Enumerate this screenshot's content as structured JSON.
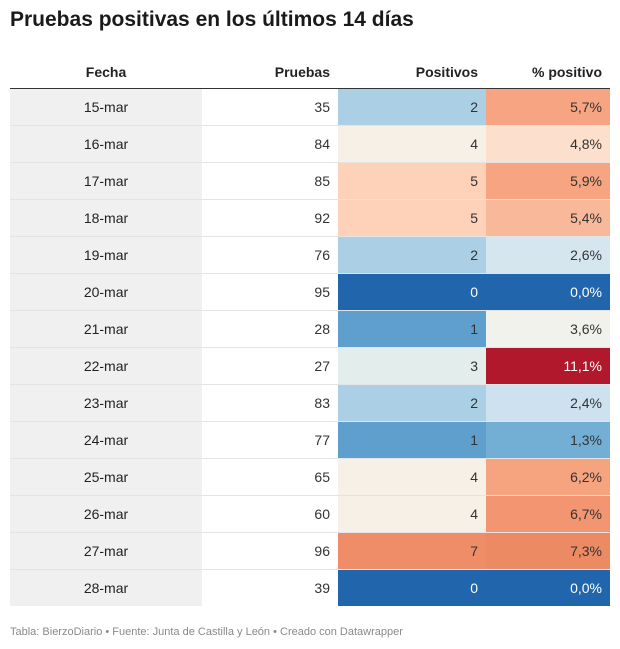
{
  "chart_data": {
    "type": "table",
    "title": "Pruebas positivas en los últimos 14 días",
    "columns": [
      "Fecha",
      "Pruebas",
      "Positivos",
      "% positivo"
    ],
    "rows": [
      {
        "fecha": "15-mar",
        "pruebas": 35,
        "positivos": 2,
        "pct_label": "5,7%",
        "pct": 5.7,
        "pos_color": "#abcfe5",
        "pct_color": "#f6a482"
      },
      {
        "fecha": "16-mar",
        "pruebas": 84,
        "positivos": 4,
        "pct_label": "4,8%",
        "pct": 4.8,
        "pos_color": "#f7f0e6",
        "pct_color": "#fcdfcc"
      },
      {
        "fecha": "17-mar",
        "pruebas": 85,
        "positivos": 5,
        "pct_label": "5,9%",
        "pct": 5.9,
        "pos_color": "#fdd2b9",
        "pct_color": "#f6a482"
      },
      {
        "fecha": "18-mar",
        "pruebas": 92,
        "positivos": 5,
        "pct_label": "5,4%",
        "pct": 5.4,
        "pos_color": "#fdd2b9",
        "pct_color": "#f8b89a"
      },
      {
        "fecha": "19-mar",
        "pruebas": 76,
        "positivos": 2,
        "pct_label": "2,6%",
        "pct": 2.6,
        "pos_color": "#abcfe5",
        "pct_color": "#d5e6ef"
      },
      {
        "fecha": "20-mar",
        "pruebas": 95,
        "positivos": 0,
        "pct_label": "0,0%",
        "pct": 0.0,
        "pos_color": "#2166ac",
        "pct_color": "#2166ac"
      },
      {
        "fecha": "21-mar",
        "pruebas": 28,
        "positivos": 1,
        "pct_label": "3,6%",
        "pct": 3.6,
        "pos_color": "#5e9fcd",
        "pct_color": "#f1f2ec"
      },
      {
        "fecha": "22-mar",
        "pruebas": 27,
        "positivos": 3,
        "pct_label": "11,1%",
        "pct": 11.1,
        "pos_color": "#e3edeb",
        "pct_color": "#b2182b"
      },
      {
        "fecha": "23-mar",
        "pruebas": 83,
        "positivos": 2,
        "pct_label": "2,4%",
        "pct": 2.4,
        "pos_color": "#abcfe5",
        "pct_color": "#cde2ee"
      },
      {
        "fecha": "24-mar",
        "pruebas": 77,
        "positivos": 1,
        "pct_label": "1,3%",
        "pct": 1.3,
        "pos_color": "#5e9fcd",
        "pct_color": "#73afd5"
      },
      {
        "fecha": "25-mar",
        "pruebas": 65,
        "positivos": 4,
        "pct_label": "6,2%",
        "pct": 6.2,
        "pos_color": "#f7f0e6",
        "pct_color": "#f5a47f"
      },
      {
        "fecha": "26-mar",
        "pruebas": 60,
        "positivos": 4,
        "pct_label": "6,7%",
        "pct": 6.7,
        "pos_color": "#f7f0e6",
        "pct_color": "#f39570"
      },
      {
        "fecha": "27-mar",
        "pruebas": 96,
        "positivos": 7,
        "pct_label": "7,3%",
        "pct": 7.3,
        "pos_color": "#ef8d68",
        "pct_color": "#ec8a64"
      },
      {
        "fecha": "28-mar",
        "pruebas": 39,
        "positivos": 0,
        "pct_label": "0,0%",
        "pct": 0.0,
        "pos_color": "#2166ac",
        "pct_color": "#2166ac"
      }
    ]
  },
  "footer": "Tabla: BierzoDiario • Fuente: Junta de Castilla y León • Creado con Datawrapper"
}
